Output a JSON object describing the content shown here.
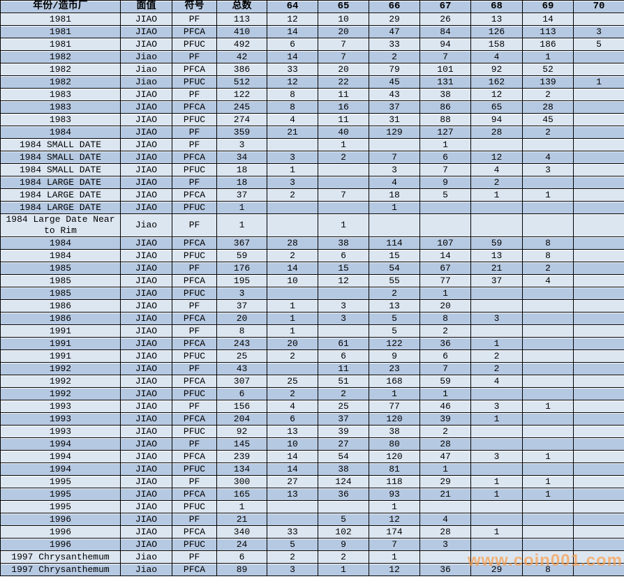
{
  "table": {
    "headers": [
      "年份/造币厂",
      "面值",
      "符号",
      "总数",
      "64",
      "65",
      "66",
      "67",
      "68",
      "69",
      "70"
    ],
    "rows": [
      [
        "1981",
        "JIAO",
        "PF",
        "113",
        "12",
        "10",
        "29",
        "26",
        "13",
        "14",
        ""
      ],
      [
        "1981",
        "JIAO",
        "PFCA",
        "410",
        "14",
        "20",
        "47",
        "84",
        "126",
        "113",
        "3"
      ],
      [
        "1981",
        "JIAO",
        "PFUC",
        "492",
        "6",
        "7",
        "33",
        "94",
        "158",
        "186",
        "5"
      ],
      [
        "1982",
        "Jiao",
        "PF",
        "42",
        "14",
        "7",
        "2",
        "7",
        "4",
        "1",
        ""
      ],
      [
        "1982",
        "Jiao",
        "PFCA",
        "386",
        "33",
        "20",
        "79",
        "101",
        "92",
        "52",
        ""
      ],
      [
        "1982",
        "Jiao",
        "PFUC",
        "512",
        "12",
        "22",
        "45",
        "131",
        "162",
        "139",
        "1"
      ],
      [
        "1983",
        "JIAO",
        "PF",
        "122",
        "8",
        "11",
        "43",
        "38",
        "12",
        "2",
        ""
      ],
      [
        "1983",
        "JIAO",
        "PFCA",
        "245",
        "8",
        "16",
        "37",
        "86",
        "65",
        "28",
        ""
      ],
      [
        "1983",
        "JIAO",
        "PFUC",
        "274",
        "4",
        "11",
        "31",
        "88",
        "94",
        "45",
        ""
      ],
      [
        "1984",
        "JIAO",
        "PF",
        "359",
        "21",
        "40",
        "129",
        "127",
        "28",
        "2",
        ""
      ],
      [
        "1984 SMALL DATE",
        "JIAO",
        "PF",
        "3",
        "",
        "1",
        "",
        "1",
        "",
        "",
        ""
      ],
      [
        "1984 SMALL DATE",
        "JIAO",
        "PFCA",
        "34",
        "3",
        "2",
        "7",
        "6",
        "12",
        "4",
        ""
      ],
      [
        "1984 SMALL DATE",
        "JIAO",
        "PFUC",
        "18",
        "1",
        "",
        "3",
        "7",
        "4",
        "3",
        ""
      ],
      [
        "1984 LARGE DATE",
        "JIAO",
        "PF",
        "18",
        "3",
        "",
        "4",
        "9",
        "2",
        "",
        ""
      ],
      [
        "1984 LARGE DATE",
        "JIAO",
        "PFCA",
        "37",
        "2",
        "7",
        "18",
        "5",
        "1",
        "1",
        ""
      ],
      [
        "1984 LARGE DATE",
        "JIAO",
        "PFUC",
        "1",
        "",
        "",
        "1",
        "",
        "",
        "",
        ""
      ],
      [
        "1984 Large Date Near to Rim",
        "Jiao",
        "PF",
        "1",
        "",
        "1",
        "",
        "",
        "",
        "",
        ""
      ],
      [
        "1984",
        "JIAO",
        "PFCA",
        "367",
        "28",
        "38",
        "114",
        "107",
        "59",
        "8",
        ""
      ],
      [
        "1984",
        "JIAO",
        "PFUC",
        "59",
        "2",
        "6",
        "15",
        "14",
        "13",
        "8",
        ""
      ],
      [
        "1985",
        "JIAO",
        "PF",
        "176",
        "14",
        "15",
        "54",
        "67",
        "21",
        "2",
        ""
      ],
      [
        "1985",
        "JIAO",
        "PFCA",
        "195",
        "10",
        "12",
        "55",
        "77",
        "37",
        "4",
        ""
      ],
      [
        "1985",
        "JIAO",
        "PFUC",
        "3",
        "",
        "",
        "2",
        "1",
        "",
        "",
        ""
      ],
      [
        "1986",
        "JIAO",
        "PF",
        "37",
        "1",
        "3",
        "13",
        "20",
        "",
        "",
        ""
      ],
      [
        "1986",
        "JIAO",
        "PFCA",
        "20",
        "1",
        "3",
        "5",
        "8",
        "3",
        "",
        ""
      ],
      [
        "1991",
        "JIAO",
        "PF",
        "8",
        "1",
        "",
        "5",
        "2",
        "",
        "",
        ""
      ],
      [
        "1991",
        "JIAO",
        "PFCA",
        "243",
        "20",
        "61",
        "122",
        "36",
        "1",
        "",
        ""
      ],
      [
        "1991",
        "JIAO",
        "PFUC",
        "25",
        "2",
        "6",
        "9",
        "6",
        "2",
        "",
        ""
      ],
      [
        "1992",
        "JIAO",
        "PF",
        "43",
        "",
        "11",
        "23",
        "7",
        "2",
        "",
        ""
      ],
      [
        "1992",
        "JIAO",
        "PFCA",
        "307",
        "25",
        "51",
        "168",
        "59",
        "4",
        "",
        ""
      ],
      [
        "1992",
        "JIAO",
        "PFUC",
        "6",
        "2",
        "2",
        "1",
        "1",
        "",
        "",
        ""
      ],
      [
        "1993",
        "JIAO",
        "PF",
        "156",
        "4",
        "25",
        "77",
        "46",
        "3",
        "1",
        ""
      ],
      [
        "1993",
        "JIAO",
        "PFCA",
        "204",
        "6",
        "37",
        "120",
        "39",
        "1",
        "",
        ""
      ],
      [
        "1993",
        "JIAO",
        "PFUC",
        "92",
        "13",
        "39",
        "38",
        "2",
        "",
        "",
        ""
      ],
      [
        "1994",
        "JIAO",
        "PF",
        "145",
        "10",
        "27",
        "80",
        "28",
        "",
        "",
        ""
      ],
      [
        "1994",
        "JIAO",
        "PFCA",
        "239",
        "14",
        "54",
        "120",
        "47",
        "3",
        "1",
        ""
      ],
      [
        "1994",
        "JIAO",
        "PFUC",
        "134",
        "14",
        "38",
        "81",
        "1",
        "",
        "",
        ""
      ],
      [
        "1995",
        "JIAO",
        "PF",
        "300",
        "27",
        "124",
        "118",
        "29",
        "1",
        "1",
        ""
      ],
      [
        "1995",
        "JIAO",
        "PFCA",
        "165",
        "13",
        "36",
        "93",
        "21",
        "1",
        "1",
        ""
      ],
      [
        "1995",
        "JIAO",
        "PFUC",
        "1",
        "",
        "",
        "1",
        "",
        "",
        "",
        ""
      ],
      [
        "1996",
        "JIAO",
        "PF",
        "21",
        "",
        "5",
        "12",
        "4",
        "",
        "",
        ""
      ],
      [
        "1996",
        "JIAO",
        "PFCA",
        "340",
        "33",
        "102",
        "174",
        "28",
        "1",
        "",
        ""
      ],
      [
        "1996",
        "JIAO",
        "PFUC",
        "24",
        "5",
        "9",
        "7",
        "3",
        "",
        "",
        ""
      ],
      [
        "1997 Chrysanthemum",
        "Jiao",
        "PF",
        "6",
        "2",
        "2",
        "1",
        "",
        "",
        "",
        ""
      ],
      [
        "1997 Chrysanthemum",
        "Jiao",
        "PFCA",
        "89",
        "3",
        "1",
        "12",
        "36",
        "29",
        "8",
        ""
      ]
    ]
  },
  "watermark": {
    "text": "www.coin001.com",
    "color": "#f89f4f"
  },
  "colors": {
    "header_bg": "#b6c9e2",
    "row_light": "#dce6f1",
    "row_dark": "#b6c9e2",
    "border": "#000000",
    "text": "#000000"
  }
}
